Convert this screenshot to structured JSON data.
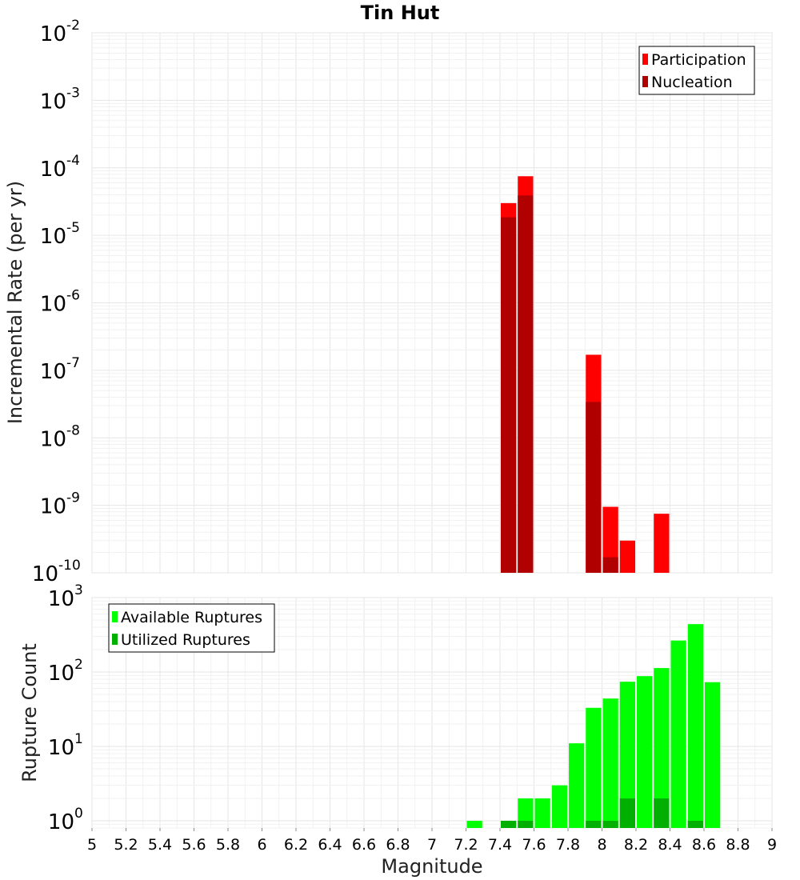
{
  "chart_data": [
    {
      "type": "bar",
      "title": "Tin Hut",
      "xlabel": "",
      "ylabel": "Incremental Rate (per yr)",
      "yscale": "log",
      "ylim": [
        1e-10,
        0.01
      ],
      "xlim": [
        5,
        9
      ],
      "bin_width": 0.1,
      "grid": true,
      "legend_position": "top-right",
      "y_ticks": [
        {
          "base": "10",
          "exp": "-10"
        },
        {
          "base": "10",
          "exp": "-9"
        },
        {
          "base": "10",
          "exp": "-8"
        },
        {
          "base": "10",
          "exp": "-7"
        },
        {
          "base": "10",
          "exp": "-6"
        },
        {
          "base": "10",
          "exp": "-5"
        },
        {
          "base": "10",
          "exp": "-4"
        },
        {
          "base": "10",
          "exp": "-3"
        },
        {
          "base": "10",
          "exp": "-2"
        }
      ],
      "series": [
        {
          "name": "Participation",
          "color": "#ff0000",
          "points": [
            {
              "x": 7.45,
              "y": 3e-05
            },
            {
              "x": 7.55,
              "y": 7.5e-05
            },
            {
              "x": 7.95,
              "y": 1.7e-07
            },
            {
              "x": 8.05,
              "y": 9.5e-10
            },
            {
              "x": 8.15,
              "y": 3e-10
            },
            {
              "x": 8.35,
              "y": 7.5e-10
            }
          ]
        },
        {
          "name": "Nucleation",
          "color": "#b00000",
          "points": [
            {
              "x": 7.45,
              "y": 1.85e-05
            },
            {
              "x": 7.55,
              "y": 3.9e-05
            },
            {
              "x": 7.95,
              "y": 3.4e-08
            },
            {
              "x": 8.05,
              "y": 1.7e-10
            }
          ]
        }
      ]
    },
    {
      "type": "bar",
      "title": "",
      "xlabel": "Magnitude",
      "ylabel": "Rupture Count",
      "yscale": "log",
      "ylim": [
        0.8,
        1000
      ],
      "xlim": [
        5,
        9
      ],
      "bin_width": 0.1,
      "grid": true,
      "legend_position": "top-left",
      "y_ticks": [
        {
          "base": "10",
          "exp": "0",
          "value": 1
        },
        {
          "base": "10",
          "exp": "1",
          "value": 10
        },
        {
          "base": "10",
          "exp": "2",
          "value": 100
        },
        {
          "base": "10",
          "exp": "3",
          "value": 1000
        }
      ],
      "x_ticks": [
        "5",
        "5.2",
        "5.4",
        "5.6",
        "5.8",
        "6",
        "6.2",
        "6.4",
        "6.6",
        "6.8",
        "7",
        "7.2",
        "7.4",
        "7.6",
        "7.8",
        "8",
        "8.2",
        "8.4",
        "8.6",
        "8.8",
        "9"
      ],
      "series": [
        {
          "name": "Available Ruptures",
          "color": "#00ff00",
          "points": [
            {
              "x": 7.25,
              "y": 1
            },
            {
              "x": 7.45,
              "y": 1
            },
            {
              "x": 7.55,
              "y": 2
            },
            {
              "x": 7.65,
              "y": 2
            },
            {
              "x": 7.75,
              "y": 3
            },
            {
              "x": 7.85,
              "y": 11
            },
            {
              "x": 7.95,
              "y": 33
            },
            {
              "x": 8.05,
              "y": 44
            },
            {
              "x": 8.15,
              "y": 74
            },
            {
              "x": 8.25,
              "y": 88
            },
            {
              "x": 8.35,
              "y": 113
            },
            {
              "x": 8.45,
              "y": 265
            },
            {
              "x": 8.55,
              "y": 440
            },
            {
              "x": 8.65,
              "y": 73
            }
          ]
        },
        {
          "name": "Utilized Ruptures",
          "color": "#00b000",
          "points": [
            {
              "x": 7.45,
              "y": 1
            },
            {
              "x": 7.55,
              "y": 1
            },
            {
              "x": 7.95,
              "y": 1
            },
            {
              "x": 8.05,
              "y": 1
            },
            {
              "x": 8.15,
              "y": 2
            },
            {
              "x": 8.35,
              "y": 2
            },
            {
              "x": 8.55,
              "y": 1
            }
          ]
        }
      ]
    }
  ]
}
